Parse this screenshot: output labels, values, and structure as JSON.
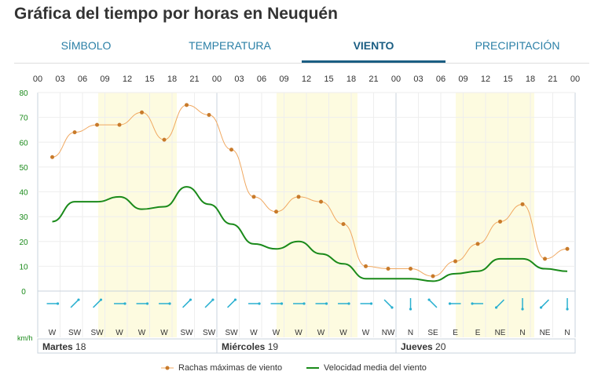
{
  "title": "Gráfica del tiempo por horas en Neuquén",
  "tabs": [
    {
      "label": "SÍMBOLO"
    },
    {
      "label": "TEMPERATURA"
    },
    {
      "label": "VIENTO",
      "active": true
    },
    {
      "label": "PRECIPITACIÓN"
    }
  ],
  "chart_data": {
    "type": "line",
    "hour_ticks": [
      "00",
      "03",
      "06",
      "09",
      "12",
      "15",
      "18",
      "21",
      "00",
      "03",
      "06",
      "09",
      "12",
      "15",
      "18",
      "21",
      "00",
      "03",
      "06",
      "09",
      "12",
      "15",
      "18",
      "21",
      "00"
    ],
    "days": [
      {
        "name": "Martes",
        "num": "18"
      },
      {
        "name": "Miércoles",
        "num": "19"
      },
      {
        "name": "Jueves",
        "num": "20"
      }
    ],
    "ylabel": "km/h",
    "ylim": [
      0,
      80
    ],
    "yticks": [
      0,
      10,
      20,
      30,
      40,
      50,
      60,
      70,
      80
    ],
    "grid": true,
    "directions": [
      "W",
      "SW",
      "SW",
      "W",
      "W",
      "W",
      "SW",
      "SW",
      "SW",
      "W",
      "W",
      "W",
      "W",
      "W",
      "W",
      "NW",
      "N",
      "SE",
      "E",
      "E",
      "NE",
      "N",
      "NE",
      "N"
    ],
    "series": [
      {
        "name": "Rachas máximas de viento",
        "color": "#f0a860",
        "values": [
          54,
          64,
          67,
          67,
          72,
          61,
          75,
          71,
          57,
          38,
          32,
          38,
          36,
          27,
          10,
          9,
          9,
          6,
          12,
          19,
          28,
          35,
          13,
          17
        ]
      },
      {
        "name": "Velocidad media del viento",
        "color": "#1a8a1a",
        "values": [
          28,
          36,
          36,
          38,
          33,
          34,
          42,
          35,
          27,
          19,
          17,
          20,
          15,
          11,
          5,
          5,
          5,
          4,
          7,
          8,
          13,
          13,
          9,
          8
        ]
      }
    ],
    "legend": "bottom"
  }
}
